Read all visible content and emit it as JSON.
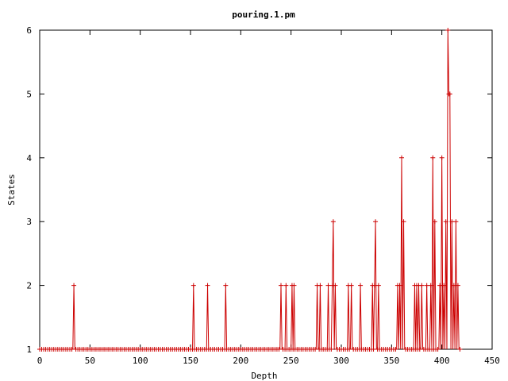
{
  "chart_data": {
    "type": "line",
    "title": "pouring.1.pm",
    "xlabel": "Depth",
    "ylabel": "States",
    "xlim": [
      0,
      450
    ],
    "ylim": [
      1,
      6
    ],
    "xticks": [
      0,
      50,
      100,
      150,
      200,
      250,
      300,
      350,
      400,
      450
    ],
    "yticks": [
      1,
      2,
      3,
      4,
      5,
      6
    ],
    "grid": false,
    "legend": "none",
    "marker": "plus",
    "color": "#cc0000",
    "spikes": [
      [
        34,
        2
      ],
      [
        153,
        2
      ],
      [
        167,
        2
      ],
      [
        185,
        2
      ],
      [
        240,
        2
      ],
      [
        245,
        2
      ],
      [
        251,
        2
      ],
      [
        253,
        2
      ],
      [
        276,
        2
      ],
      [
        279,
        2
      ],
      [
        287,
        2
      ],
      [
        291,
        2
      ],
      [
        292,
        3
      ],
      [
        294,
        2
      ],
      [
        307,
        2
      ],
      [
        310,
        2
      ],
      [
        319,
        2
      ],
      [
        331,
        2
      ],
      [
        333,
        2
      ],
      [
        334,
        3
      ],
      [
        337,
        2
      ],
      [
        356,
        2
      ],
      [
        358,
        2
      ],
      [
        360,
        4
      ],
      [
        362,
        3
      ],
      [
        373,
        2
      ],
      [
        375,
        2
      ],
      [
        377,
        2
      ],
      [
        380,
        2
      ],
      [
        385,
        2
      ],
      [
        389,
        2
      ],
      [
        391,
        4
      ],
      [
        393,
        3
      ],
      [
        398,
        2
      ],
      [
        400,
        4
      ],
      [
        402,
        2
      ],
      [
        404,
        3
      ],
      [
        406,
        6
      ],
      [
        407,
        5
      ],
      [
        408,
        5
      ],
      [
        410,
        3
      ],
      [
        412,
        2
      ],
      [
        414,
        3
      ],
      [
        416,
        2
      ]
    ],
    "x_end": 418,
    "base_value": 1
  }
}
